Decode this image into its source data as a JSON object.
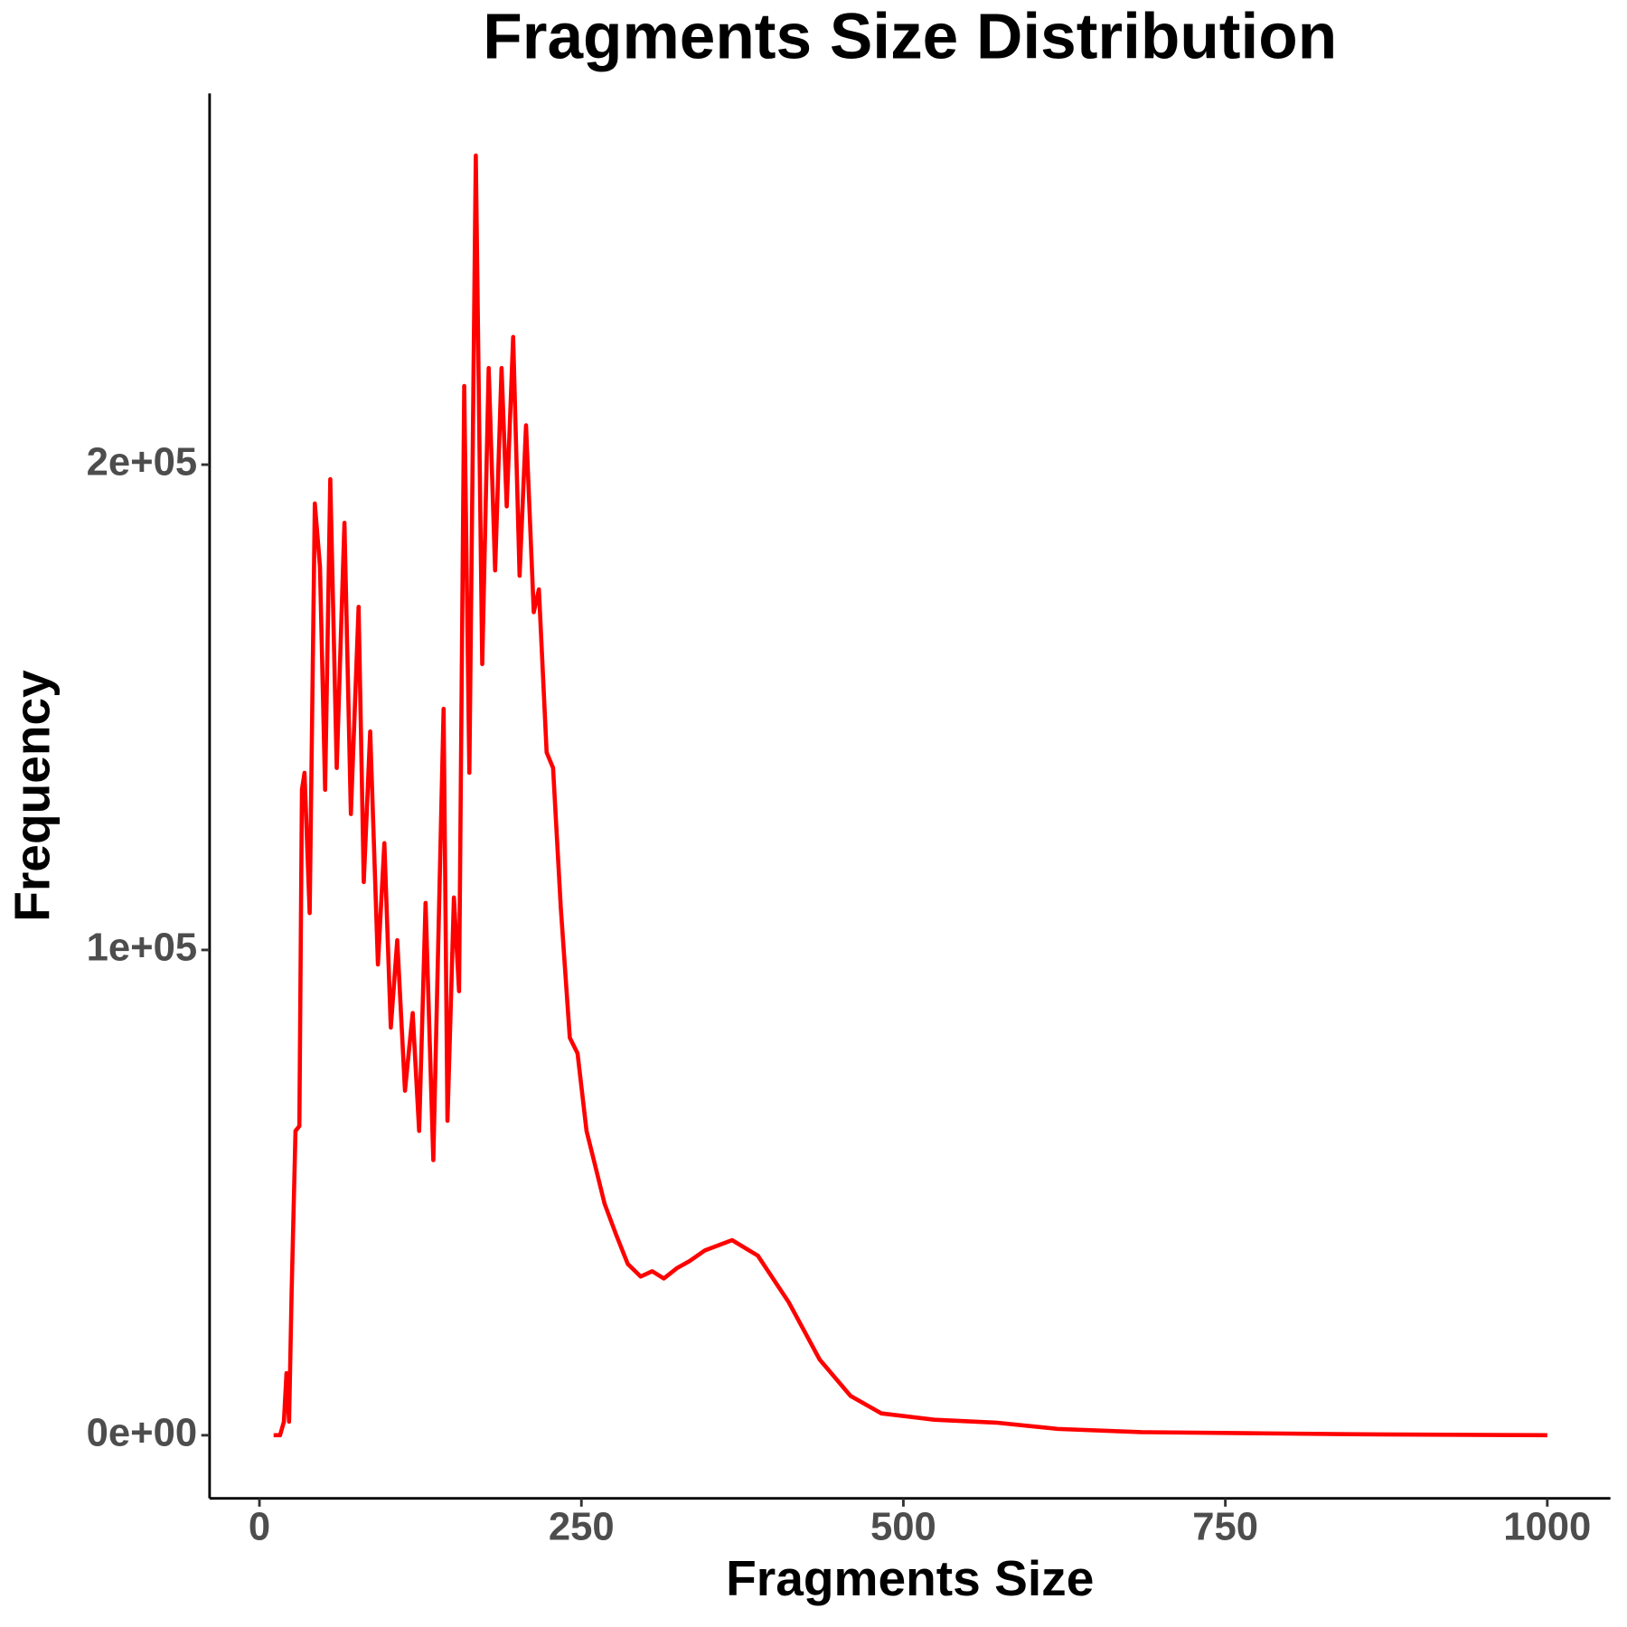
{
  "chart_data": {
    "type": "line",
    "title": "Fragments Size Distribution",
    "x_label": "Fragments Size",
    "y_label": "Frequency",
    "color": "#ff0000",
    "grid": false,
    "x": [
      11,
      16,
      19,
      21,
      23,
      25,
      28,
      31,
      33,
      35,
      39,
      43,
      47,
      51,
      55,
      60,
      66,
      71,
      77,
      81,
      86,
      92,
      97,
      102,
      107,
      113,
      119,
      124,
      129,
      135,
      143,
      146,
      151,
      155,
      159,
      163,
      168,
      173,
      178,
      183,
      188,
      192,
      197,
      202,
      207,
      213,
      217,
      223,
      228,
      234,
      241,
      247,
      254,
      260,
      268,
      277,
      286,
      296,
      305,
      314,
      324,
      334,
      346,
      367,
      387,
      411,
      435,
      459,
      483,
      524,
      572,
      620,
      685,
      766,
      846,
      1000
    ],
    "values": [
      0,
      0,
      2800,
      12800,
      2800,
      29500,
      62700,
      63700,
      133000,
      136500,
      107600,
      192000,
      179000,
      133000,
      197000,
      137500,
      188000,
      128000,
      170700,
      114000,
      145000,
      97000,
      122000,
      84000,
      102000,
      71000,
      87000,
      62700,
      109700,
      56700,
      149700,
      64800,
      110800,
      91500,
      216200,
      136500,
      263700,
      158900,
      219900,
      178200,
      219900,
      191400,
      226300,
      177100,
      208100,
      169600,
      174300,
      140700,
      137500,
      108700,
      81900,
      78700,
      62700,
      56300,
      47700,
      41300,
      35300,
      32700,
      33800,
      32300,
      34400,
      35900,
      38100,
      40200,
      37000,
      27400,
      15600,
      8100,
      4500,
      3200,
      2600,
      1300,
      640,
      430,
      210,
      0
    ],
    "xlim": [
      -38.7,
      1049
    ],
    "ylim": [
      -13000,
      276500
    ],
    "xticks": [
      0,
      250,
      500,
      750,
      1000
    ],
    "yticks": [
      {
        "value": 0,
        "label": "0e+00"
      },
      {
        "value": 100000,
        "label": "1e+05"
      },
      {
        "value": 200000,
        "label": "2e+05"
      }
    ]
  }
}
